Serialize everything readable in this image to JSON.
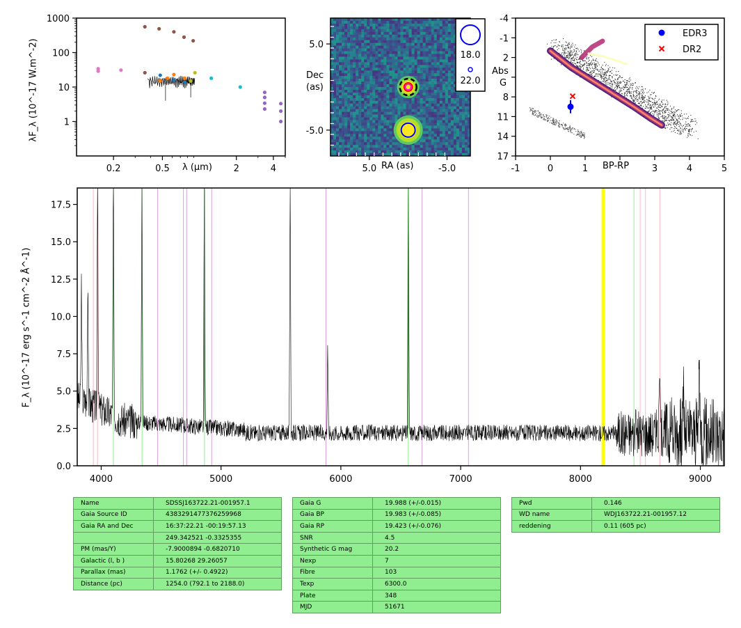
{
  "sed": {
    "ylabel": "λF_λ (10^-17 W.m^-2)",
    "xlabel": "λ (μm)",
    "xticks": [
      "0.2",
      "0.5",
      "2",
      "4"
    ],
    "yticks": [
      "1000",
      "100",
      "10",
      "1"
    ],
    "colors": {
      "brown": "#8c564b",
      "pink": "#e377c2",
      "blue": "#1f77b4",
      "orange": "#ff7f0e",
      "olive": "#bcbd22",
      "cyan": "#17becf",
      "purple": "#9467bd",
      "green": "#2ca02c",
      "red": "#d62728"
    }
  },
  "cutout": {
    "ylabel_line1": "Dec",
    "ylabel_line2": "(as)",
    "xlabel": "RA (as)",
    "xticks": [
      "5.0",
      "-5.0"
    ],
    "yticks": [
      "5.0",
      "-5.0"
    ],
    "legend": [
      "18.0",
      "22.0"
    ]
  },
  "cmd": {
    "xlabel": "BP-RP",
    "ylabel_line1": "Abs",
    "ylabel_line2": "G",
    "xticks": [
      "-1",
      "0",
      "1",
      "2",
      "3",
      "4",
      "5"
    ],
    "yticks": [
      "-4",
      "-1",
      "2",
      "5",
      "8",
      "11",
      "14",
      "17"
    ],
    "legend": [
      {
        "label": "EDR3",
        "color": "#0000ff",
        "marker": "circle"
      },
      {
        "label": "DR2",
        "color": "#ff0000",
        "marker": "x"
      }
    ]
  },
  "chart_data": [
    {
      "type": "scatter",
      "id": "sed",
      "xlabel": "λ (μm)",
      "ylabel": "λF_λ (10^-17 W.m^-2)",
      "xscale": "log",
      "yscale": "log",
      "xlim": [
        0.1,
        5
      ],
      "ylim": [
        0.1,
        1000
      ],
      "series": [
        {
          "color": "#8c564b",
          "points": [
            [
              0.36,
              560
            ],
            [
              0.47,
              490
            ],
            [
              0.62,
              400
            ],
            [
              0.75,
              280
            ],
            [
              0.89,
              220
            ],
            [
              0.36,
              26
            ]
          ]
        },
        {
          "color": "#e377c2",
          "points": [
            [
              0.15,
              34
            ],
            [
              0.15,
              29
            ],
            [
              0.23,
              31
            ]
          ]
        },
        {
          "color": "#1f77b4",
          "points": [
            [
              0.48,
              22
            ],
            [
              0.62,
              16
            ],
            [
              0.76,
              14
            ]
          ]
        },
        {
          "color": "#ff7f0e",
          "points": [
            [
              0.48,
              15
            ],
            [
              0.55,
              18
            ],
            [
              0.62,
              23
            ],
            [
              0.76,
              18
            ]
          ]
        },
        {
          "color": "#bcbd22",
          "points": [
            [
              0.92,
              26
            ],
            [
              0.85,
              15
            ]
          ]
        },
        {
          "color": "#17becf",
          "points": [
            [
              1.25,
              18
            ],
            [
              2.15,
              10
            ]
          ]
        },
        {
          "color": "#9467bd",
          "points": [
            [
              3.4,
              7
            ],
            [
              3.4,
              5
            ],
            [
              3.4,
              3.4
            ],
            [
              3.4,
              2.3
            ],
            [
              4.6,
              3.3
            ],
            [
              4.6,
              2
            ],
            [
              4.6,
              1
            ]
          ]
        }
      ]
    },
    {
      "type": "heatmap",
      "id": "cutout",
      "xlabel": "RA (as)",
      "ylabel": "Dec (as)",
      "xlim": [
        10,
        -8
      ],
      "ylim": [
        -8,
        8
      ],
      "sources": [
        {
          "ra": 0,
          "dec": 0,
          "label": "target"
        },
        {
          "ra": 0,
          "dec": -5,
          "label": "neighbour"
        }
      ],
      "legend": [
        "18.0",
        "22.0"
      ]
    },
    {
      "type": "scatter",
      "id": "cmd",
      "xlabel": "BP-RP",
      "ylabel": "Abs G",
      "xlim": [
        -1,
        5
      ],
      "ylim": [
        17,
        -4
      ],
      "series": [
        {
          "name": "EDR3",
          "color": "#0000ff",
          "points": [
            [
              0.58,
              9.5
            ]
          ],
          "yerr": [
            1.0
          ]
        },
        {
          "name": "DR2",
          "color": "#ff0000",
          "points": [
            [
              0.64,
              7.9
            ]
          ]
        }
      ]
    },
    {
      "type": "line",
      "id": "spectrum",
      "xlabel": "",
      "ylabel": "F_λ (10^-17 erg s^-1 cm^-2 Å^-1)",
      "xlim": [
        3800,
        9200
      ],
      "ylim": [
        0,
        18.6
      ],
      "xticks": [
        "4000",
        "5000",
        "6000",
        "7000",
        "8000",
        "9000"
      ],
      "yticks": [
        "0.0",
        "2.5",
        "5.0",
        "7.5",
        "10.0",
        "12.5",
        "15.0",
        "17.5"
      ],
      "emission_lines": [
        [
          3835,
          8
        ],
        [
          3889,
          9
        ],
        [
          3970,
          18
        ],
        [
          4102,
          17
        ],
        [
          4340,
          17
        ],
        [
          4861,
          19
        ],
        [
          5577,
          18
        ],
        [
          5890,
          6
        ],
        [
          6563,
          19
        ],
        [
          8660,
          4
        ],
        [
          8860,
          3.5
        ],
        [
          8990,
          6
        ]
      ],
      "vlines": {
        "pink": [
          3934,
          3969,
          8498,
          8542,
          8662
        ],
        "green": [
          4102,
          4341,
          4862,
          6563,
          8446
        ],
        "violet": [
          4471,
          4686,
          4713,
          4922,
          5876,
          6678,
          7065
        ],
        "yellow": [
          8183,
          8195
        ]
      },
      "colors": {
        "pink": "#ffb6c1",
        "green": "#90ee90",
        "violet": "#dda0dd",
        "yellow": "#ffff00",
        "line": "#000000",
        "peakline": "#2ca02c"
      }
    }
  ],
  "tables": {
    "t1": [
      [
        "Name",
        "SDSSJ163722.21-001957.1"
      ],
      [
        "Gaia Source ID",
        "4383291477376259968"
      ],
      [
        "Gaia RA and Dec",
        "16:37:22.21    -00:19:57.13"
      ],
      [
        "",
        "249.342521    -0.3325355"
      ],
      [
        "PM (mas/Y)",
        "-7.9000894    -0.6820710"
      ],
      [
        "Galactic (l, b )",
        "15.80268    29.26057"
      ],
      [
        "Parallax (mas)",
        "1.1762 (+/- 0.4922)"
      ],
      [
        "Distance (pc)",
        "1254.0 (792.1 to 2188.0)"
      ]
    ],
    "t2": [
      [
        "Gaia G",
        "19.988 (+/-0.015)"
      ],
      [
        "Gaia BP",
        "19.983 (+/-0.085)"
      ],
      [
        "Gaia RP",
        "19.423 (+/-0.076)"
      ],
      [
        "SNR",
        "4.5"
      ],
      [
        "Synthetic G mag",
        "20.2"
      ],
      [
        "Nexp",
        "7"
      ],
      [
        "Fibre",
        "103"
      ],
      [
        "Texp",
        "6300.0"
      ],
      [
        "Plate",
        "348"
      ],
      [
        "MJD",
        "51671"
      ]
    ],
    "t3": [
      [
        "Pwd",
        "0.146"
      ],
      [
        "WD name",
        "WDJ163722.21-001957.12"
      ],
      [
        "reddening",
        "0.11 (605 pc)"
      ]
    ]
  }
}
